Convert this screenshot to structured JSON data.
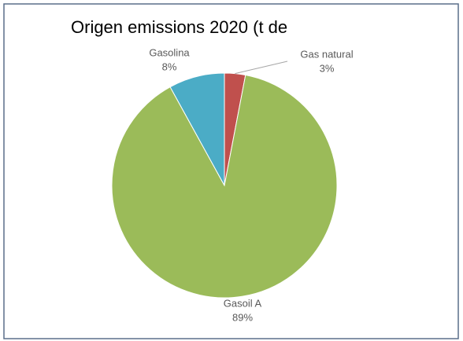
{
  "chart_data": {
    "type": "pie",
    "title": "Origen emissions 2020 (t de",
    "categories": [
      "Gas natural",
      "Gasoil A",
      "Gasolina"
    ],
    "values": [
      3,
      89,
      8
    ],
    "value_labels": [
      "3%",
      "89%",
      "8%"
    ],
    "colors": [
      "#c0504d",
      "#9bbb59",
      "#4bacc6"
    ]
  }
}
